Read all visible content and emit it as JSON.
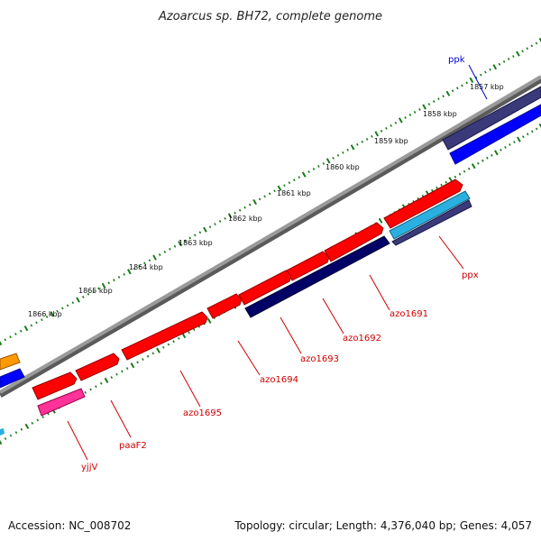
{
  "title": "Azoarcus sp. BH72, complete genome",
  "footer": {
    "accession": "Accession: NC_008702",
    "topology": "Topology: circular; Length: 4,376,040 bp; Genes: 4,057"
  },
  "ticks": [
    "1857 kbp",
    "1858 kbp",
    "1859 kbp",
    "1860 kbp",
    "1861 kbp",
    "1862 kbp",
    "1863 kbp",
    "1864 kbp",
    "1865 kbp",
    "1866 kbp"
  ],
  "genes": [
    {
      "label": "ppk",
      "color": "#0000cc"
    },
    {
      "label": "ppx",
      "color": "#cc0000"
    },
    {
      "label": "azo1691",
      "color": "#cc0000"
    },
    {
      "label": "azo1692",
      "color": "#cc0000"
    },
    {
      "label": "azo1693",
      "color": "#cc0000"
    },
    {
      "label": "azo1694",
      "color": "#cc0000"
    },
    {
      "label": "azo1695",
      "color": "#cc0000"
    },
    {
      "label": "paaF2",
      "color": "#cc0000"
    },
    {
      "label": "yjjV",
      "color": "#cc0000"
    }
  ],
  "colors": {
    "backbone": "#808080",
    "tick_green": "#1a7a1a",
    "red": "#ff0000",
    "navy": "#000066",
    "blue": "#0000ff",
    "slate": "#3a3a7a",
    "cyan": "#2ab0e0",
    "pink": "#ff3399",
    "orange": "#ff9900"
  }
}
